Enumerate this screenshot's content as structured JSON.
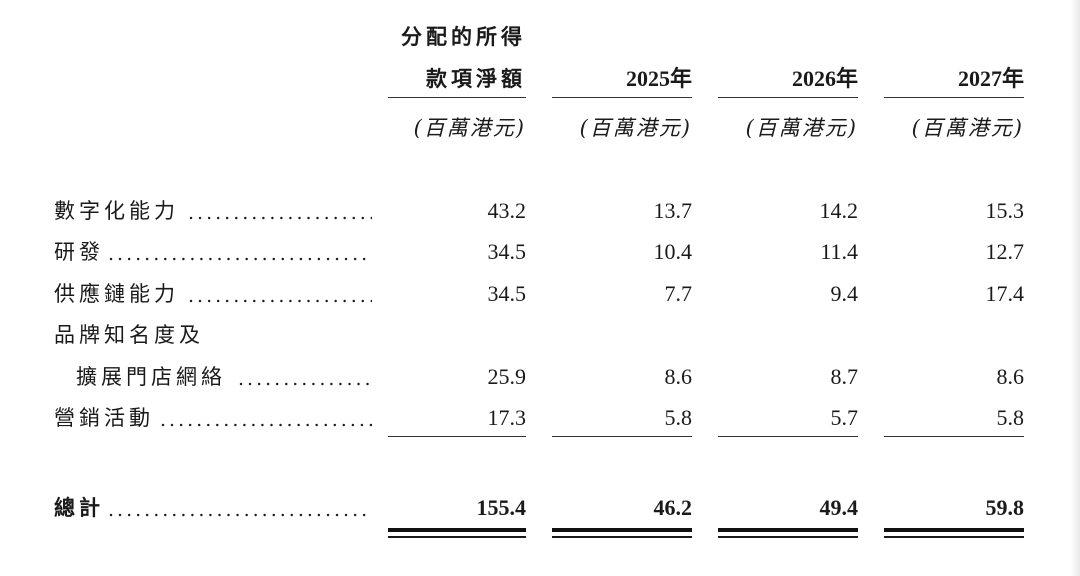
{
  "header": {
    "col0_line1": "分配的所得",
    "col0_line2": "款項淨額",
    "years": [
      "2025年",
      "2026年",
      "2027年"
    ],
    "unit": "(百萬港元)"
  },
  "rows": [
    {
      "label": "數字化能力",
      "values": [
        "43.2",
        "13.7",
        "14.2",
        "15.3"
      ]
    },
    {
      "label": "研發",
      "values": [
        "34.5",
        "10.4",
        "11.4",
        "12.7"
      ]
    },
    {
      "label": "供應鏈能力",
      "values": [
        "34.5",
        "7.7",
        "9.4",
        "17.4"
      ]
    },
    {
      "label_line1": "品牌知名度及",
      "label_line2": "擴展門店網絡",
      "values": [
        "25.9",
        "8.6",
        "8.7",
        "8.6"
      ]
    },
    {
      "label": "營銷活動",
      "values": [
        "17.3",
        "5.8",
        "5.7",
        "5.8"
      ]
    }
  ],
  "total": {
    "label": "總計",
    "values": [
      "155.4",
      "46.2",
      "49.4",
      "59.8"
    ]
  },
  "leader": "................................................"
}
